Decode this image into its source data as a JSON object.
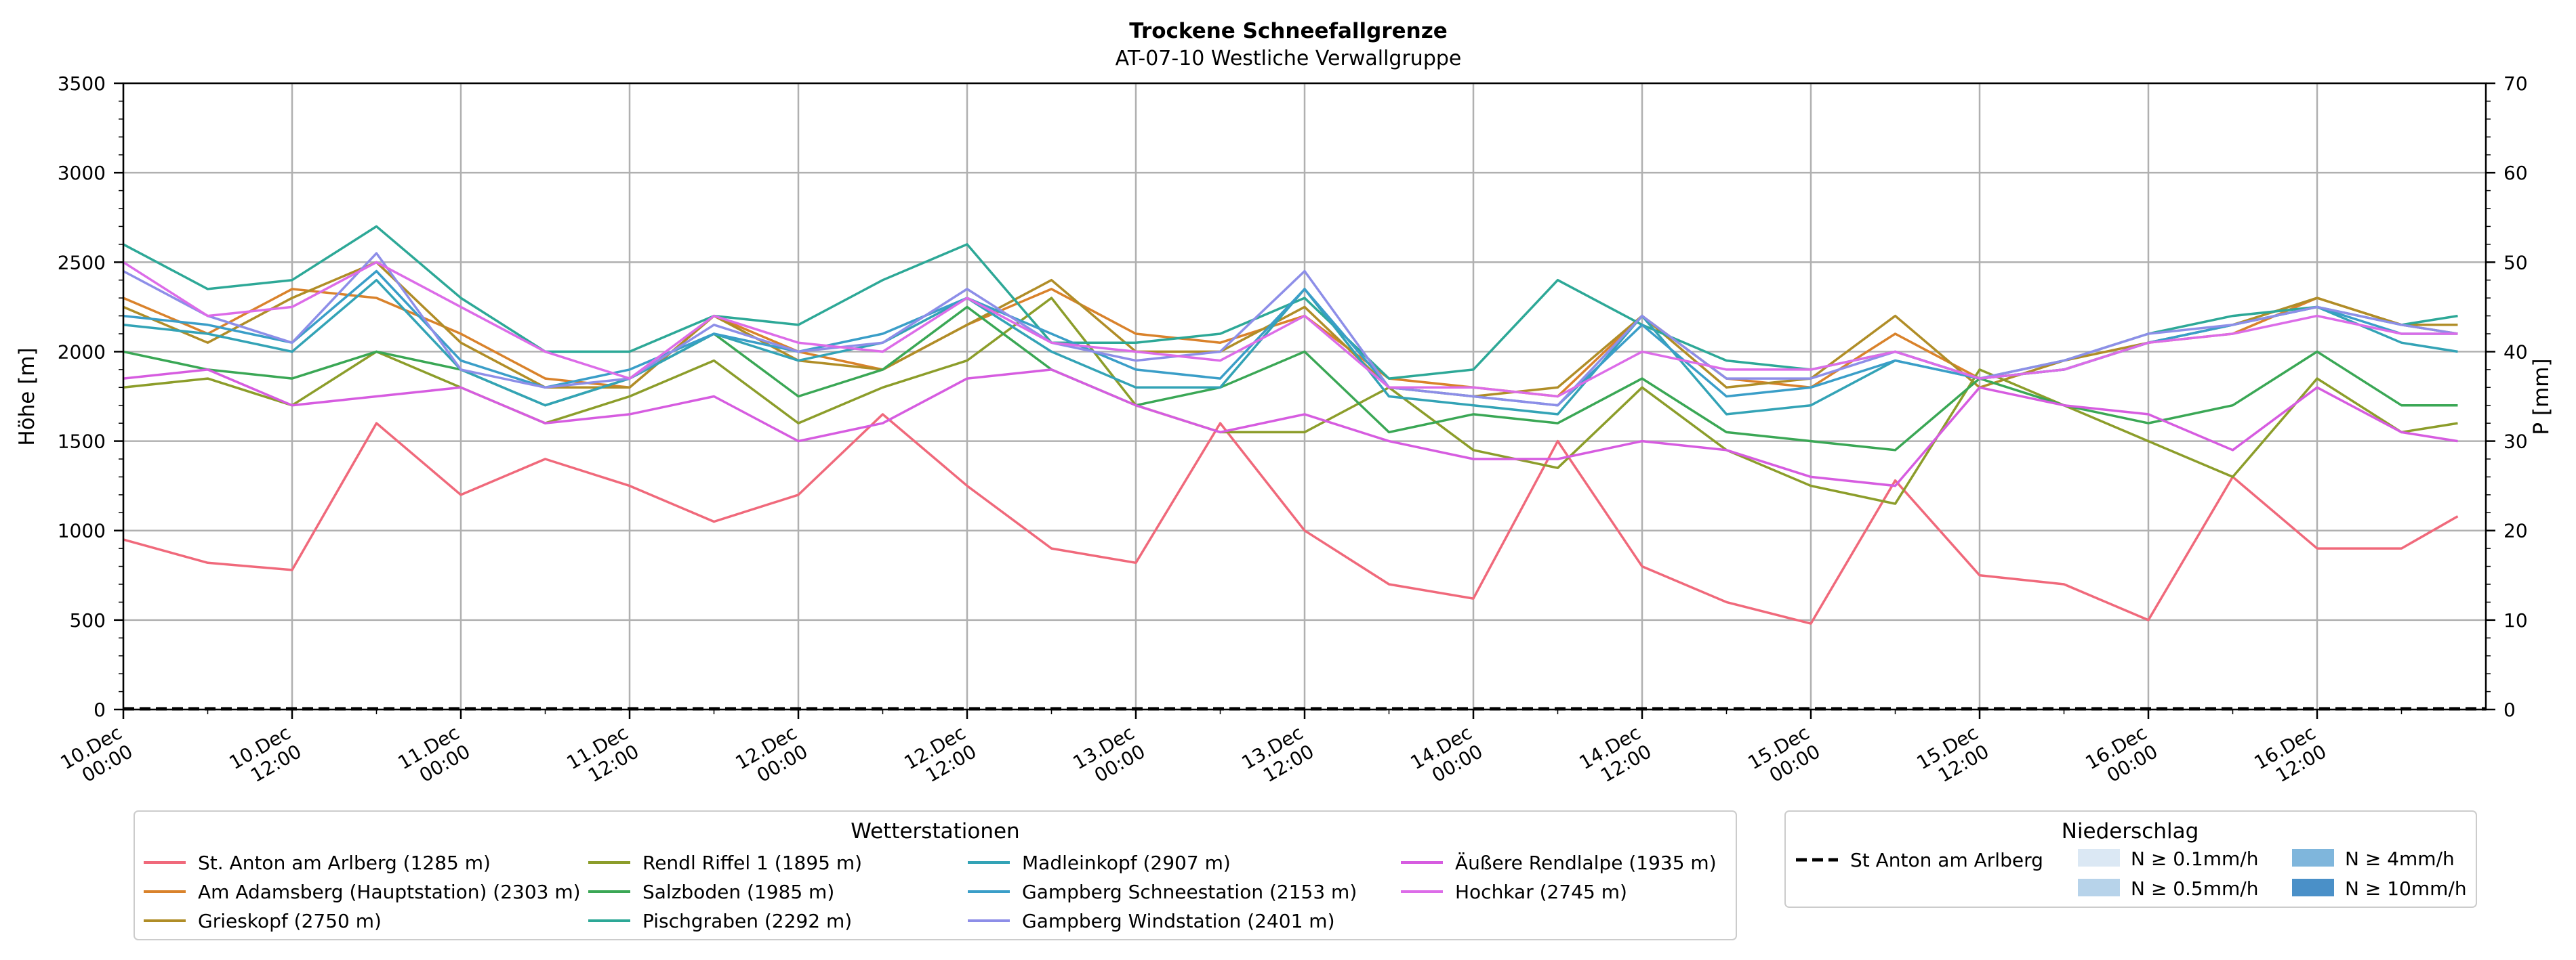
{
  "chart_data": {
    "type": "line",
    "title": "Trockene Schneefallgrenze",
    "subtitle": "AT-07-10 Westliche Verwallgruppe",
    "ylabel": "Höhe [m]",
    "y2label": "P [mm]",
    "ylim": [
      0,
      3500
    ],
    "y2lim": [
      0,
      70
    ],
    "yticks": [
      0,
      500,
      1000,
      1500,
      2000,
      2500,
      3000,
      3500
    ],
    "y2ticks": [
      0,
      10,
      20,
      30,
      40,
      50,
      60,
      70
    ],
    "x_hours": [
      0,
      6,
      12,
      18,
      24,
      30,
      36,
      42,
      48,
      54,
      60,
      66,
      72,
      78,
      84,
      90,
      96,
      102,
      108,
      114,
      120,
      126,
      132,
      138,
      144,
      150,
      156,
      162,
      166
    ],
    "xticks": [
      {
        "h": 0,
        "line1": "10.Dec",
        "line2": "00:00"
      },
      {
        "h": 12,
        "line1": "10.Dec",
        "line2": "12:00"
      },
      {
        "h": 24,
        "line1": "11.Dec",
        "line2": "00:00"
      },
      {
        "h": 36,
        "line1": "11.Dec",
        "line2": "12:00"
      },
      {
        "h": 48,
        "line1": "12.Dec",
        "line2": "00:00"
      },
      {
        "h": 60,
        "line1": "12.Dec",
        "line2": "12:00"
      },
      {
        "h": 72,
        "line1": "13.Dec",
        "line2": "00:00"
      },
      {
        "h": 84,
        "line1": "13.Dec",
        "line2": "12:00"
      },
      {
        "h": 96,
        "line1": "14.Dec",
        "line2": "00:00"
      },
      {
        "h": 108,
        "line1": "14.Dec",
        "line2": "12:00"
      },
      {
        "h": 120,
        "line1": "15.Dec",
        "line2": "00:00"
      },
      {
        "h": 132,
        "line1": "15.Dec",
        "line2": "12:00"
      },
      {
        "h": 144,
        "line1": "16.Dec",
        "line2": "00:00"
      },
      {
        "h": 156,
        "line1": "16.Dec",
        "line2": "12:00"
      }
    ],
    "series": [
      {
        "name": "St. Anton am Arlberg (1285 m)",
        "color": "#f0697b",
        "values": [
          950,
          820,
          780,
          1600,
          1200,
          1400,
          1250,
          1050,
          1200,
          1650,
          1250,
          900,
          820,
          1600,
          1000,
          700,
          620,
          1500,
          800,
          600,
          480,
          1280,
          750,
          700,
          500,
          1300,
          900,
          900,
          1080
        ]
      },
      {
        "name": "Am Adamsberg (Hauptstation) (2303 m)",
        "color": "#d9822b",
        "values": [
          2300,
          2100,
          2350,
          2300,
          2100,
          1850,
          1800,
          2200,
          2000,
          1900,
          2150,
          2350,
          2100,
          2050,
          2200,
          1850,
          1800,
          1750,
          2200,
          1850,
          1800,
          2100,
          1850,
          1900,
          2050,
          2100,
          2300,
          2150,
          2100
        ]
      },
      {
        "name": "Grieskopf (2750 m)",
        "color": "#b08d27",
        "values": [
          2250,
          2050,
          2300,
          2500,
          2050,
          1800,
          1800,
          2200,
          1950,
          1900,
          2150,
          2400,
          2000,
          2000,
          2250,
          1800,
          1750,
          1800,
          2200,
          1800,
          1850,
          2200,
          1800,
          1950,
          2050,
          2150,
          2300,
          2150,
          2150
        ]
      },
      {
        "name": "Rendl Riffel 1 (1895 m)",
        "color": "#8c9d2a",
        "values": [
          1800,
          1850,
          1700,
          2000,
          1800,
          1600,
          1750,
          1950,
          1600,
          1800,
          1950,
          2300,
          1700,
          1550,
          1550,
          1800,
          1450,
          1350,
          1800,
          1450,
          1250,
          1150,
          1900,
          1700,
          1500,
          1300,
          1850,
          1550,
          1600
        ]
      },
      {
        "name": "Salzboden (1985 m)",
        "color": "#3aa755",
        "values": [
          2000,
          1900,
          1850,
          2000,
          1900,
          1700,
          1850,
          2100,
          1750,
          1900,
          2250,
          1900,
          1700,
          1800,
          2000,
          1550,
          1650,
          1600,
          1850,
          1550,
          1500,
          1450,
          1850,
          1700,
          1600,
          1700,
          2000,
          1700,
          1700
        ]
      },
      {
        "name": "Pischgraben (2292 m)",
        "color": "#2da897",
        "values": [
          2600,
          2350,
          2400,
          2700,
          2300,
          2000,
          2000,
          2200,
          2150,
          2400,
          2600,
          2050,
          2050,
          2100,
          2300,
          1850,
          1900,
          2400,
          2150,
          1950,
          1900,
          2000,
          1850,
          1950,
          2100,
          2200,
          2250,
          2150,
          2200
        ]
      },
      {
        "name": "Madleinkopf (2907 m)",
        "color": "#33a3b6",
        "values": [
          2150,
          2100,
          2000,
          2400,
          1900,
          1700,
          1850,
          2100,
          1950,
          2050,
          2300,
          2000,
          1800,
          1800,
          2350,
          1750,
          1700,
          1650,
          2200,
          1650,
          1700,
          1950,
          1850,
          1900,
          2050,
          2150,
          2250,
          2050,
          2000
        ]
      },
      {
        "name": "Gampberg Schneestation (2153 m)",
        "color": "#3a9ec8",
        "values": [
          2200,
          2150,
          2050,
          2450,
          1950,
          1800,
          1900,
          2100,
          2000,
          2100,
          2300,
          2100,
          1900,
          1850,
          2350,
          1800,
          1750,
          1700,
          2150,
          1750,
          1800,
          1950,
          1850,
          1900,
          2050,
          2150,
          2250,
          2100,
          2100
        ]
      },
      {
        "name": "Gampberg Windstation (2401 m)",
        "color": "#8d8ee8",
        "values": [
          2450,
          2200,
          2050,
          2550,
          1900,
          1800,
          1850,
          2150,
          2000,
          2050,
          2350,
          2050,
          1950,
          2000,
          2450,
          1800,
          1750,
          1700,
          2200,
          1850,
          1850,
          2000,
          1850,
          1950,
          2100,
          2150,
          2250,
          2150,
          2100
        ]
      },
      {
        "name": "Äußere Rendlalpe (1935 m)",
        "color": "#d65ce0",
        "values": [
          1850,
          1900,
          1700,
          1750,
          1800,
          1600,
          1650,
          1750,
          1500,
          1600,
          1850,
          1900,
          1700,
          1550,
          1650,
          1500,
          1400,
          1400,
          1500,
          1450,
          1300,
          1250,
          1800,
          1700,
          1650,
          1450,
          1800,
          1550,
          1500
        ]
      },
      {
        "name": "Hochkar (2745 m)",
        "color": "#dc6ce8",
        "values": [
          2500,
          2200,
          2250,
          2500,
          2250,
          2000,
          1850,
          2200,
          2050,
          2000,
          2300,
          2050,
          2000,
          1950,
          2200,
          1800,
          1800,
          1750,
          2000,
          1900,
          1900,
          2000,
          1850,
          1900,
          2050,
          2100,
          2200,
          2100,
          2100
        ]
      }
    ],
    "precip_series": [
      {
        "name": "St Anton am Arlberg",
        "style": "dashed",
        "color": "#000000",
        "values": [
          0,
          0
        ]
      }
    ]
  },
  "legend_stations": {
    "title": "Wetterstationen",
    "col1": [
      "St. Anton am Arlberg (1285 m)",
      "Am Adamsberg (Hauptstation) (2303 m)",
      "Grieskopf (2750 m)"
    ],
    "col2": [
      "Rendl Riffel 1 (1895 m)",
      "Salzboden (1985 m)",
      "Pischgraben (2292 m)"
    ],
    "col3": [
      "Madleinkopf (2907 m)",
      "Gampberg Schneestation (2153 m)",
      "Gampberg Windstation (2401 m)"
    ],
    "col4": [
      "Äußere Rendlalpe (1935 m)",
      "Hochkar (2745 m)"
    ]
  },
  "legend_precip": {
    "title": "Niederschlag",
    "line_label": "St Anton am Arlberg",
    "levels": [
      {
        "label": "N ≥ 0.1mm/h",
        "color": "#dbe8f4"
      },
      {
        "label": "N ≥ 0.5mm/h",
        "color": "#b7d3ea"
      },
      {
        "label": "N ≥ 4mm/h",
        "color": "#7fb6dc"
      },
      {
        "label": "N ≥ 10mm/h",
        "color": "#4a90c8"
      }
    ]
  }
}
